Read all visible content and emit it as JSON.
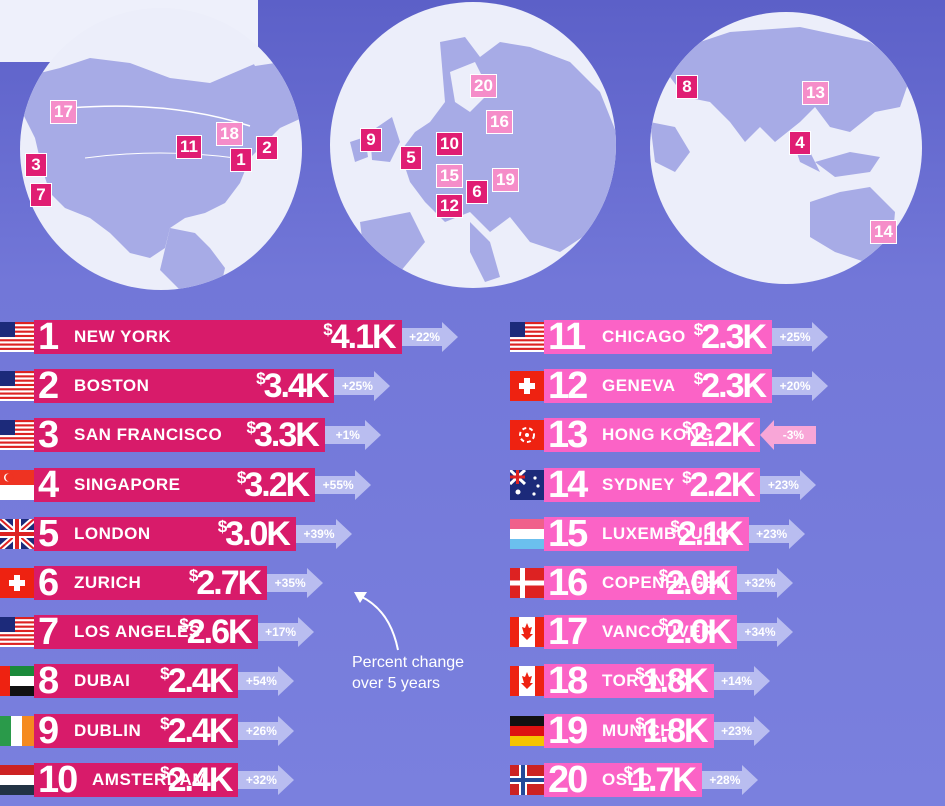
{
  "chart_data": {
    "type": "bar",
    "orientation": "horizontal",
    "currency_symbol": "$",
    "annotation_lines": [
      "Percent change",
      "over 5 years"
    ],
    "rankings": [
      {
        "rank": "1",
        "city": "NEW YORK",
        "value": 4.1,
        "label": "4.1K",
        "change": "+22%",
        "flag": "us-flag-icon"
      },
      {
        "rank": "2",
        "city": "BOSTON",
        "value": 3.4,
        "label": "3.4K",
        "change": "+25%",
        "flag": "us-flag-icon"
      },
      {
        "rank": "3",
        "city": "SAN FRANCISCO",
        "value": 3.3,
        "label": "3.3K",
        "change": "+1%",
        "flag": "us-flag-icon"
      },
      {
        "rank": "4",
        "city": "SINGAPORE",
        "value": 3.2,
        "label": "3.2K",
        "change": "+55%",
        "flag": "singapore-flag-icon"
      },
      {
        "rank": "5",
        "city": "LONDON",
        "value": 3.0,
        "label": "3.0K",
        "change": "+39%",
        "flag": "uk-flag-icon"
      },
      {
        "rank": "6",
        "city": "ZURICH",
        "value": 2.7,
        "label": "2.7K",
        "change": "+35%",
        "flag": "swiss-flag-icon"
      },
      {
        "rank": "7",
        "city": "LOS ANGELES",
        "value": 2.6,
        "label": "2.6K",
        "change": "+17%",
        "flag": "us-flag-icon"
      },
      {
        "rank": "8",
        "city": "DUBAI",
        "value": 2.4,
        "label": "2.4K",
        "change": "+54%",
        "flag": "uae-flag-icon"
      },
      {
        "rank": "9",
        "city": "DUBLIN",
        "value": 2.4,
        "label": "2.4K",
        "change": "+26%",
        "flag": "ireland-flag-icon"
      },
      {
        "rank": "10",
        "city": "AMSTERDAM",
        "value": 2.4,
        "label": "2.4K",
        "change": "+32%",
        "flag": "netherlands-flag-icon"
      },
      {
        "rank": "11",
        "city": "CHICAGO",
        "value": 2.3,
        "label": "2.3K",
        "change": "+25%",
        "flag": "us-flag-icon"
      },
      {
        "rank": "12",
        "city": "GENEVA",
        "value": 2.3,
        "label": "2.3K",
        "change": "+20%",
        "flag": "swiss-flag-icon"
      },
      {
        "rank": "13",
        "city": "HONG KONG",
        "value": 2.2,
        "label": "2.2K",
        "change": "-3%",
        "flag": "hong-kong-flag-icon"
      },
      {
        "rank": "14",
        "city": "SYDNEY",
        "value": 2.2,
        "label": "2.2K",
        "change": "+23%",
        "flag": "australia-flag-icon"
      },
      {
        "rank": "15",
        "city": "LUXEMBOURG",
        "value": 2.1,
        "label": "2.1K",
        "change": "+23%",
        "flag": "luxembourg-flag-icon"
      },
      {
        "rank": "16",
        "city": "COPENHAGEN",
        "value": 2.0,
        "label": "2.0K",
        "change": "+32%",
        "flag": "denmark-flag-icon"
      },
      {
        "rank": "17",
        "city": "VANCOUVER",
        "value": 2.0,
        "label": "2.0K",
        "change": "+34%",
        "flag": "canada-flag-icon"
      },
      {
        "rank": "18",
        "city": "TORONTO",
        "value": 1.8,
        "label": "1.8K",
        "change": "+14%",
        "flag": "canada-flag-icon"
      },
      {
        "rank": "19",
        "city": "MUNICH",
        "value": 1.8,
        "label": "1.8K",
        "change": "+23%",
        "flag": "germany-flag-icon"
      },
      {
        "rank": "20",
        "city": "OSLO",
        "value": 1.7,
        "label": "1.7K",
        "change": "+28%",
        "flag": "norway-flag-icon"
      }
    ],
    "map_markers": [
      {
        "globe": "north-america",
        "rank": "17"
      },
      {
        "globe": "north-america",
        "rank": "18"
      },
      {
        "globe": "north-america",
        "rank": "11"
      },
      {
        "globe": "north-america",
        "rank": "2"
      },
      {
        "globe": "north-america",
        "rank": "1"
      },
      {
        "globe": "north-america",
        "rank": "3"
      },
      {
        "globe": "north-america",
        "rank": "7"
      },
      {
        "globe": "europe",
        "rank": "20"
      },
      {
        "globe": "europe",
        "rank": "16"
      },
      {
        "globe": "europe",
        "rank": "9"
      },
      {
        "globe": "europe",
        "rank": "10"
      },
      {
        "globe": "europe",
        "rank": "5"
      },
      {
        "globe": "europe",
        "rank": "15"
      },
      {
        "globe": "europe",
        "rank": "6"
      },
      {
        "globe": "europe",
        "rank": "19"
      },
      {
        "globe": "europe",
        "rank": "12"
      },
      {
        "globe": "asia-pacific",
        "rank": "8"
      },
      {
        "globe": "asia-pacific",
        "rank": "13"
      },
      {
        "globe": "asia-pacific",
        "rank": "4"
      },
      {
        "globe": "asia-pacific",
        "rank": "14"
      }
    ]
  },
  "colors": {
    "background": "#6e72d4",
    "globe": "#eceefa",
    "land": "#a7abe6",
    "bar_dark": "#d81b6a",
    "bar_light": "#fb63c6",
    "marker": "#e01d73",
    "arrow": "#b9bdf0",
    "negative_arrow": "#f8a6d7",
    "text": "#ffffff"
  }
}
